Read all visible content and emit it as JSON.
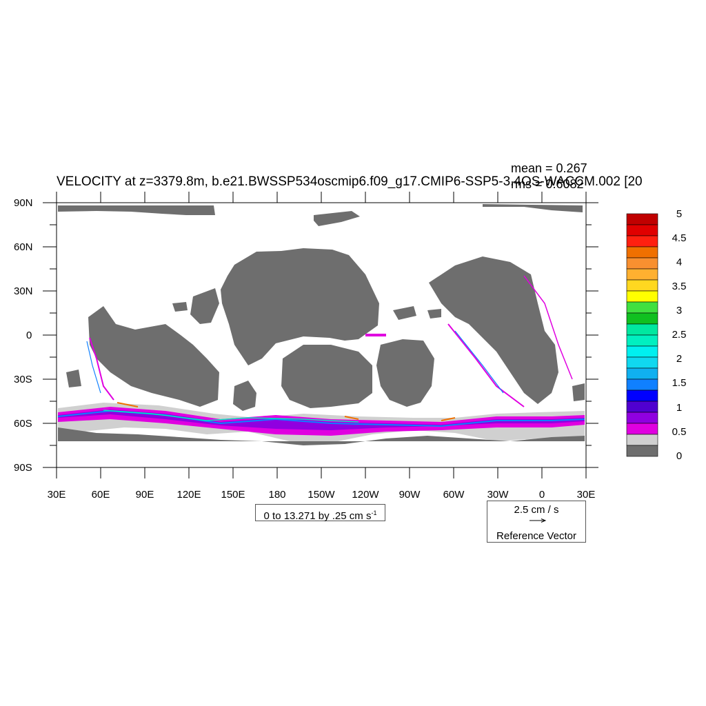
{
  "plot": {
    "title": "VELOCITY at z=3379.8m, b.e21.BWSSP534oscmip6.f09_g17.CMIP6-SSP5-3.4OS-WACCM.002 [20",
    "stats_mean": "mean = 0.267",
    "stats_rms": "rms = 0.6082"
  },
  "axes": {
    "lat_labels": [
      "90N",
      "60N",
      "30N",
      "0",
      "30S",
      "60S",
      "90S"
    ],
    "lon_labels": [
      "30E",
      "60E",
      "90E",
      "120E",
      "150E",
      "180",
      "150W",
      "120W",
      "90W",
      "60W",
      "30W",
      "0",
      "30E"
    ]
  },
  "colorbar": {
    "labels": [
      "5",
      "4.5",
      "4",
      "3.5",
      "3",
      "2.5",
      "2",
      "1.5",
      "1",
      "0.5",
      "0"
    ],
    "colors": [
      "#c00000",
      "#e00000",
      "#ff2010",
      "#f07000",
      "#f89030",
      "#ffb030",
      "#ffd820",
      "#ffff00",
      "#40e040",
      "#10c020",
      "#00e8a0",
      "#00f0c0",
      "#00f0f0",
      "#10d8f0",
      "#10b0f0",
      "#1080ff",
      "#0000ff",
      "#5000d0",
      "#9000e0",
      "#e000e0",
      "#d0d0d0",
      "#6e6e6e"
    ]
  },
  "contour_info": {
    "text": "0 to 13.271 by .25 cm s",
    "superscript": "-1"
  },
  "reference_vector": {
    "magnitude": "2.5 cm / s",
    "label": "Reference Vector"
  },
  "colors": {
    "land": "#6e6e6e",
    "shelf": "#d0d0d0",
    "ocean": "#ffffff"
  }
}
